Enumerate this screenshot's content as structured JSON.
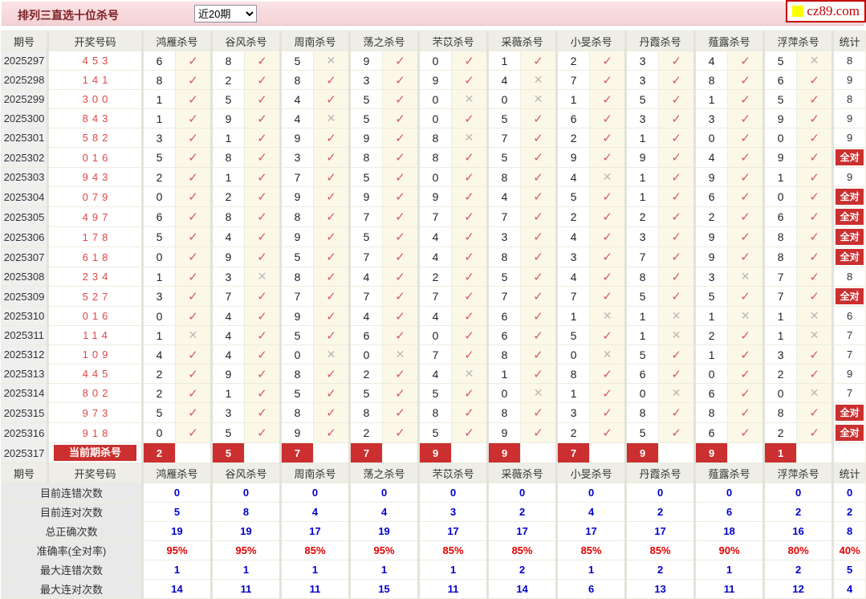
{
  "header": {
    "title": "排列三直选十位杀号",
    "range_value": "近20期",
    "logo_text": "cz89.com"
  },
  "labels": {
    "all_correct": "全对"
  },
  "icons": {
    "check": "✓",
    "cross": "✕"
  },
  "colors": {
    "accent_red": "#cb2f2f",
    "pink_bar": "#f6d6da",
    "check_red": "#d85a5a",
    "cross_gray": "#b8b8b8",
    "draw_red": "#e14747",
    "stat_blue": "#0000cc",
    "stat_red": "#e00000",
    "check_cell_bg": "#fbf8e8"
  },
  "columns": [
    "期号",
    "开奖号码",
    "鸿雁杀号",
    "谷风杀号",
    "周南杀号",
    "荡之杀号",
    "芣苡杀号",
    "采薇杀号",
    "小旻杀号",
    "丹霞杀号",
    "薤露杀号",
    "浮萍杀号",
    "统计"
  ],
  "rows": [
    {
      "period": "2025297",
      "draw": "453",
      "kills": [
        {
          "n": 6,
          "ok": 1
        },
        {
          "n": 8,
          "ok": 1
        },
        {
          "n": 5,
          "ok": 0
        },
        {
          "n": 9,
          "ok": 1
        },
        {
          "n": 0,
          "ok": 1
        },
        {
          "n": 1,
          "ok": 1
        },
        {
          "n": 2,
          "ok": 1
        },
        {
          "n": 3,
          "ok": 1
        },
        {
          "n": 4,
          "ok": 1
        },
        {
          "n": 5,
          "ok": 0
        }
      ],
      "total": "8"
    },
    {
      "period": "2025298",
      "draw": "141",
      "kills": [
        {
          "n": 8,
          "ok": 1
        },
        {
          "n": 2,
          "ok": 1
        },
        {
          "n": 8,
          "ok": 1
        },
        {
          "n": 3,
          "ok": 1
        },
        {
          "n": 9,
          "ok": 1
        },
        {
          "n": 4,
          "ok": 0
        },
        {
          "n": 7,
          "ok": 1
        },
        {
          "n": 3,
          "ok": 1
        },
        {
          "n": 8,
          "ok": 1
        },
        {
          "n": 6,
          "ok": 1
        }
      ],
      "total": "9"
    },
    {
      "period": "2025299",
      "draw": "300",
      "kills": [
        {
          "n": 1,
          "ok": 1
        },
        {
          "n": 5,
          "ok": 1
        },
        {
          "n": 4,
          "ok": 1
        },
        {
          "n": 5,
          "ok": 1
        },
        {
          "n": 0,
          "ok": 0
        },
        {
          "n": 0,
          "ok": 0
        },
        {
          "n": 1,
          "ok": 1
        },
        {
          "n": 5,
          "ok": 1
        },
        {
          "n": 1,
          "ok": 1
        },
        {
          "n": 5,
          "ok": 1
        }
      ],
      "total": "8"
    },
    {
      "period": "2025300",
      "draw": "843",
      "kills": [
        {
          "n": 1,
          "ok": 1
        },
        {
          "n": 9,
          "ok": 1
        },
        {
          "n": 4,
          "ok": 0
        },
        {
          "n": 5,
          "ok": 1
        },
        {
          "n": 0,
          "ok": 1
        },
        {
          "n": 5,
          "ok": 1
        },
        {
          "n": 6,
          "ok": 1
        },
        {
          "n": 3,
          "ok": 1
        },
        {
          "n": 3,
          "ok": 1
        },
        {
          "n": 9,
          "ok": 1
        }
      ],
      "total": "9"
    },
    {
      "period": "2025301",
      "draw": "582",
      "kills": [
        {
          "n": 3,
          "ok": 1
        },
        {
          "n": 1,
          "ok": 1
        },
        {
          "n": 9,
          "ok": 1
        },
        {
          "n": 9,
          "ok": 1
        },
        {
          "n": 8,
          "ok": 0
        },
        {
          "n": 7,
          "ok": 1
        },
        {
          "n": 2,
          "ok": 1
        },
        {
          "n": 1,
          "ok": 1
        },
        {
          "n": 0,
          "ok": 1
        },
        {
          "n": 0,
          "ok": 1
        }
      ],
      "total": "9"
    },
    {
      "period": "2025302",
      "draw": "016",
      "kills": [
        {
          "n": 5,
          "ok": 1
        },
        {
          "n": 8,
          "ok": 1
        },
        {
          "n": 3,
          "ok": 1
        },
        {
          "n": 8,
          "ok": 1
        },
        {
          "n": 8,
          "ok": 1
        },
        {
          "n": 5,
          "ok": 1
        },
        {
          "n": 9,
          "ok": 1
        },
        {
          "n": 9,
          "ok": 1
        },
        {
          "n": 4,
          "ok": 1
        },
        {
          "n": 9,
          "ok": 1
        }
      ],
      "total": "全对"
    },
    {
      "period": "2025303",
      "draw": "943",
      "kills": [
        {
          "n": 2,
          "ok": 1
        },
        {
          "n": 1,
          "ok": 1
        },
        {
          "n": 7,
          "ok": 1
        },
        {
          "n": 5,
          "ok": 1
        },
        {
          "n": 0,
          "ok": 1
        },
        {
          "n": 8,
          "ok": 1
        },
        {
          "n": 4,
          "ok": 0
        },
        {
          "n": 1,
          "ok": 1
        },
        {
          "n": 9,
          "ok": 1
        },
        {
          "n": 1,
          "ok": 1
        }
      ],
      "total": "9"
    },
    {
      "period": "2025304",
      "draw": "079",
      "kills": [
        {
          "n": 0,
          "ok": 1
        },
        {
          "n": 2,
          "ok": 1
        },
        {
          "n": 9,
          "ok": 1
        },
        {
          "n": 9,
          "ok": 1
        },
        {
          "n": 9,
          "ok": 1
        },
        {
          "n": 4,
          "ok": 1
        },
        {
          "n": 5,
          "ok": 1
        },
        {
          "n": 1,
          "ok": 1
        },
        {
          "n": 6,
          "ok": 1
        },
        {
          "n": 0,
          "ok": 1
        }
      ],
      "total": "全对"
    },
    {
      "period": "2025305",
      "draw": "497",
      "kills": [
        {
          "n": 6,
          "ok": 1
        },
        {
          "n": 8,
          "ok": 1
        },
        {
          "n": 8,
          "ok": 1
        },
        {
          "n": 7,
          "ok": 1
        },
        {
          "n": 7,
          "ok": 1
        },
        {
          "n": 7,
          "ok": 1
        },
        {
          "n": 2,
          "ok": 1
        },
        {
          "n": 2,
          "ok": 1
        },
        {
          "n": 2,
          "ok": 1
        },
        {
          "n": 6,
          "ok": 1
        }
      ],
      "total": "全对"
    },
    {
      "period": "2025306",
      "draw": "178",
      "kills": [
        {
          "n": 5,
          "ok": 1
        },
        {
          "n": 4,
          "ok": 1
        },
        {
          "n": 9,
          "ok": 1
        },
        {
          "n": 5,
          "ok": 1
        },
        {
          "n": 4,
          "ok": 1
        },
        {
          "n": 3,
          "ok": 1
        },
        {
          "n": 4,
          "ok": 1
        },
        {
          "n": 3,
          "ok": 1
        },
        {
          "n": 9,
          "ok": 1
        },
        {
          "n": 8,
          "ok": 1
        }
      ],
      "total": "全对"
    },
    {
      "period": "2025307",
      "draw": "618",
      "kills": [
        {
          "n": 0,
          "ok": 1
        },
        {
          "n": 9,
          "ok": 1
        },
        {
          "n": 5,
          "ok": 1
        },
        {
          "n": 7,
          "ok": 1
        },
        {
          "n": 4,
          "ok": 1
        },
        {
          "n": 8,
          "ok": 1
        },
        {
          "n": 3,
          "ok": 1
        },
        {
          "n": 7,
          "ok": 1
        },
        {
          "n": 9,
          "ok": 1
        },
        {
          "n": 8,
          "ok": 1
        }
      ],
      "total": "全对"
    },
    {
      "period": "2025308",
      "draw": "234",
      "kills": [
        {
          "n": 1,
          "ok": 1
        },
        {
          "n": 3,
          "ok": 0
        },
        {
          "n": 8,
          "ok": 1
        },
        {
          "n": 4,
          "ok": 1
        },
        {
          "n": 2,
          "ok": 1
        },
        {
          "n": 5,
          "ok": 1
        },
        {
          "n": 4,
          "ok": 1
        },
        {
          "n": 8,
          "ok": 1
        },
        {
          "n": 3,
          "ok": 0
        },
        {
          "n": 7,
          "ok": 1
        }
      ],
      "total": "8"
    },
    {
      "period": "2025309",
      "draw": "527",
      "kills": [
        {
          "n": 3,
          "ok": 1
        },
        {
          "n": 7,
          "ok": 1
        },
        {
          "n": 7,
          "ok": 1
        },
        {
          "n": 7,
          "ok": 1
        },
        {
          "n": 7,
          "ok": 1
        },
        {
          "n": 7,
          "ok": 1
        },
        {
          "n": 7,
          "ok": 1
        },
        {
          "n": 5,
          "ok": 1
        },
        {
          "n": 5,
          "ok": 1
        },
        {
          "n": 7,
          "ok": 1
        }
      ],
      "total": "全对"
    },
    {
      "period": "2025310",
      "draw": "016",
      "kills": [
        {
          "n": 0,
          "ok": 1
        },
        {
          "n": 4,
          "ok": 1
        },
        {
          "n": 9,
          "ok": 1
        },
        {
          "n": 4,
          "ok": 1
        },
        {
          "n": 4,
          "ok": 1
        },
        {
          "n": 6,
          "ok": 1
        },
        {
          "n": 1,
          "ok": 0
        },
        {
          "n": 1,
          "ok": 0
        },
        {
          "n": 1,
          "ok": 0
        },
        {
          "n": 1,
          "ok": 0
        }
      ],
      "total": "6"
    },
    {
      "period": "2025311",
      "draw": "114",
      "kills": [
        {
          "n": 1,
          "ok": 0
        },
        {
          "n": 4,
          "ok": 1
        },
        {
          "n": 5,
          "ok": 1
        },
        {
          "n": 6,
          "ok": 1
        },
        {
          "n": 0,
          "ok": 1
        },
        {
          "n": 6,
          "ok": 1
        },
        {
          "n": 5,
          "ok": 1
        },
        {
          "n": 1,
          "ok": 0
        },
        {
          "n": 2,
          "ok": 1
        },
        {
          "n": 1,
          "ok": 0
        }
      ],
      "total": "7"
    },
    {
      "period": "2025312",
      "draw": "109",
      "kills": [
        {
          "n": 4,
          "ok": 1
        },
        {
          "n": 4,
          "ok": 1
        },
        {
          "n": 0,
          "ok": 0
        },
        {
          "n": 0,
          "ok": 0
        },
        {
          "n": 7,
          "ok": 1
        },
        {
          "n": 8,
          "ok": 1
        },
        {
          "n": 0,
          "ok": 0
        },
        {
          "n": 5,
          "ok": 1
        },
        {
          "n": 1,
          "ok": 1
        },
        {
          "n": 3,
          "ok": 1
        }
      ],
      "total": "7"
    },
    {
      "period": "2025313",
      "draw": "445",
      "kills": [
        {
          "n": 2,
          "ok": 1
        },
        {
          "n": 9,
          "ok": 1
        },
        {
          "n": 8,
          "ok": 1
        },
        {
          "n": 2,
          "ok": 1
        },
        {
          "n": 4,
          "ok": 0
        },
        {
          "n": 1,
          "ok": 1
        },
        {
          "n": 8,
          "ok": 1
        },
        {
          "n": 6,
          "ok": 1
        },
        {
          "n": 0,
          "ok": 1
        },
        {
          "n": 2,
          "ok": 1
        }
      ],
      "total": "9"
    },
    {
      "period": "2025314",
      "draw": "802",
      "kills": [
        {
          "n": 2,
          "ok": 1
        },
        {
          "n": 1,
          "ok": 1
        },
        {
          "n": 5,
          "ok": 1
        },
        {
          "n": 5,
          "ok": 1
        },
        {
          "n": 5,
          "ok": 1
        },
        {
          "n": 0,
          "ok": 0
        },
        {
          "n": 1,
          "ok": 1
        },
        {
          "n": 0,
          "ok": 0
        },
        {
          "n": 6,
          "ok": 1
        },
        {
          "n": 0,
          "ok": 0
        }
      ],
      "total": "7"
    },
    {
      "period": "2025315",
      "draw": "973",
      "kills": [
        {
          "n": 5,
          "ok": 1
        },
        {
          "n": 3,
          "ok": 1
        },
        {
          "n": 8,
          "ok": 1
        },
        {
          "n": 8,
          "ok": 1
        },
        {
          "n": 8,
          "ok": 1
        },
        {
          "n": 8,
          "ok": 1
        },
        {
          "n": 3,
          "ok": 1
        },
        {
          "n": 8,
          "ok": 1
        },
        {
          "n": 8,
          "ok": 1
        },
        {
          "n": 8,
          "ok": 1
        }
      ],
      "total": "全对"
    },
    {
      "period": "2025316",
      "draw": "918",
      "kills": [
        {
          "n": 0,
          "ok": 1
        },
        {
          "n": 5,
          "ok": 1
        },
        {
          "n": 9,
          "ok": 1
        },
        {
          "n": 2,
          "ok": 1
        },
        {
          "n": 5,
          "ok": 1
        },
        {
          "n": 9,
          "ok": 1
        },
        {
          "n": 2,
          "ok": 1
        },
        {
          "n": 5,
          "ok": 1
        },
        {
          "n": 6,
          "ok": 1
        },
        {
          "n": 2,
          "ok": 1
        }
      ],
      "total": "全对"
    }
  ],
  "current": {
    "period": "2025317",
    "label": "当前期杀号",
    "kills": [
      "2",
      "5",
      "7",
      "7",
      "9",
      "9",
      "7",
      "9",
      "9",
      "1"
    ],
    "total": ""
  },
  "stats": {
    "rows": [
      {
        "label": "目前连错次数",
        "color": "blue",
        "values": [
          "0",
          "0",
          "0",
          "0",
          "0",
          "0",
          "0",
          "0",
          "0",
          "0",
          "0"
        ]
      },
      {
        "label": "目前连对次数",
        "color": "blue",
        "values": [
          "5",
          "8",
          "4",
          "4",
          "3",
          "2",
          "4",
          "2",
          "6",
          "2",
          "2"
        ]
      },
      {
        "label": "总正确次数",
        "color": "blue",
        "values": [
          "19",
          "19",
          "17",
          "19",
          "17",
          "17",
          "17",
          "17",
          "18",
          "16",
          "8"
        ]
      },
      {
        "label": "准确率(全对率)",
        "color": "red",
        "values": [
          "95%",
          "95%",
          "85%",
          "95%",
          "85%",
          "85%",
          "85%",
          "85%",
          "90%",
          "80%",
          "40%"
        ]
      },
      {
        "label": "最大连错次数",
        "color": "blue",
        "values": [
          "1",
          "1",
          "1",
          "1",
          "1",
          "2",
          "1",
          "2",
          "1",
          "2",
          "5"
        ]
      },
      {
        "label": "最大连对次数",
        "color": "blue",
        "values": [
          "14",
          "11",
          "11",
          "15",
          "11",
          "14",
          "6",
          "13",
          "11",
          "12",
          "4"
        ]
      }
    ]
  }
}
